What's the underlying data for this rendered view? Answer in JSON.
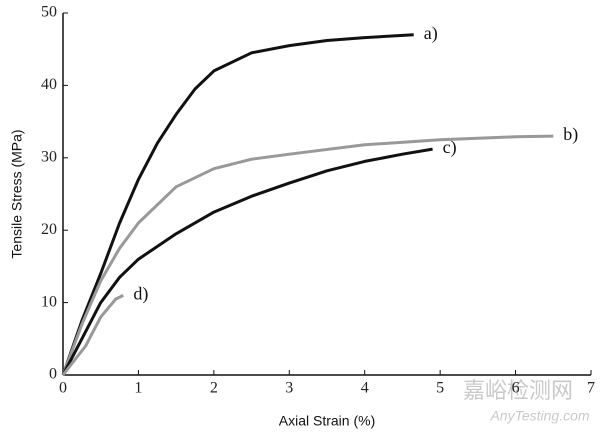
{
  "chart_data": {
    "type": "line",
    "xlabel": "Axial Strain (%)",
    "ylabel": "Tensile Stress (MPa)",
    "xlim": [
      0,
      7
    ],
    "xticks": [
      0,
      1,
      2,
      3,
      4,
      5,
      6,
      7
    ],
    "ylim": [
      0,
      50
    ],
    "yticks": [
      0,
      10,
      20,
      30,
      40,
      50
    ],
    "series": [
      {
        "name": "a)",
        "color": "#111111",
        "x": [
          0,
          0.25,
          0.5,
          0.75,
          1,
          1.25,
          1.5,
          1.75,
          2,
          2.5,
          3,
          3.5,
          4,
          4.65
        ],
        "values": [
          0,
          7.5,
          14,
          21,
          27,
          32,
          36,
          39.5,
          42,
          44.5,
          45.5,
          46.2,
          46.6,
          47
        ]
      },
      {
        "name": "b)",
        "color": "#999999",
        "x": [
          0,
          0.25,
          0.5,
          0.75,
          1,
          1.5,
          2,
          2.5,
          3,
          4,
          5,
          6,
          6.5
        ],
        "values": [
          0,
          7,
          13,
          17.5,
          21,
          26,
          28.5,
          29.8,
          30.5,
          31.8,
          32.5,
          32.9,
          33
        ]
      },
      {
        "name": "c)",
        "color": "#111111",
        "x": [
          0,
          0.25,
          0.5,
          0.75,
          1,
          1.5,
          2,
          2.5,
          3,
          3.5,
          4,
          4.5,
          4.9
        ],
        "values": [
          0,
          5,
          10,
          13.5,
          16,
          19.5,
          22.5,
          24.7,
          26.5,
          28.2,
          29.5,
          30.5,
          31.2
        ]
      },
      {
        "name": "d)",
        "color": "#999999",
        "x": [
          0,
          0.15,
          0.3,
          0.5,
          0.7,
          0.8
        ],
        "values": [
          0,
          2,
          4,
          8,
          10.5,
          11
        ]
      }
    ]
  },
  "watermark": {
    "cn": "嘉峪检测网",
    "en": "AnyTesting.com"
  }
}
